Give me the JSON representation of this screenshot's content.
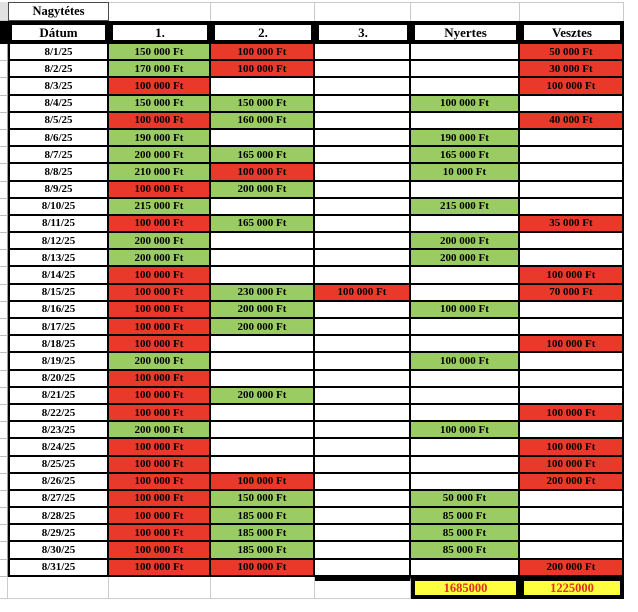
{
  "sheet": {
    "title": "Nagytétes",
    "columns": [
      "Dátum",
      "1.",
      "2.",
      "3.",
      "Nyertes",
      "Vesztes"
    ],
    "rows": [
      {
        "date": "8/1/25",
        "cells": [
          {
            "v": "150 000 Ft",
            "s": "g"
          },
          {
            "v": "100 000 Ft",
            "s": "r"
          },
          {
            "v": "",
            "s": ""
          },
          {
            "v": "",
            "s": ""
          },
          {
            "v": "50 000 Ft",
            "s": "r"
          }
        ]
      },
      {
        "date": "8/2/25",
        "cells": [
          {
            "v": "170 000 Ft",
            "s": "g"
          },
          {
            "v": "100 000 Ft",
            "s": "r"
          },
          {
            "v": "",
            "s": ""
          },
          {
            "v": "",
            "s": ""
          },
          {
            "v": "30 000 Ft",
            "s": "r"
          }
        ]
      },
      {
        "date": "8/3/25",
        "cells": [
          {
            "v": "100 000 Ft",
            "s": "r"
          },
          {
            "v": "",
            "s": ""
          },
          {
            "v": "",
            "s": ""
          },
          {
            "v": "",
            "s": ""
          },
          {
            "v": "100 000 Ft",
            "s": "r"
          }
        ]
      },
      {
        "date": "8/4/25",
        "cells": [
          {
            "v": "150 000 Ft",
            "s": "g"
          },
          {
            "v": "150 000 Ft",
            "s": "g"
          },
          {
            "v": "",
            "s": ""
          },
          {
            "v": "100 000 Ft",
            "s": "g"
          },
          {
            "v": "",
            "s": ""
          }
        ]
      },
      {
        "date": "8/5/25",
        "cells": [
          {
            "v": "100 000 Ft",
            "s": "r"
          },
          {
            "v": "160 000 Ft",
            "s": "g"
          },
          {
            "v": "",
            "s": ""
          },
          {
            "v": "",
            "s": ""
          },
          {
            "v": "40 000 Ft",
            "s": "r"
          }
        ]
      },
      {
        "date": "8/6/25",
        "cells": [
          {
            "v": "190 000 Ft",
            "s": "g"
          },
          {
            "v": "",
            "s": ""
          },
          {
            "v": "",
            "s": ""
          },
          {
            "v": "190 000 Ft",
            "s": "g"
          },
          {
            "v": "",
            "s": ""
          }
        ]
      },
      {
        "date": "8/7/25",
        "cells": [
          {
            "v": "200 000 Ft",
            "s": "g"
          },
          {
            "v": "165 000 Ft",
            "s": "g"
          },
          {
            "v": "",
            "s": ""
          },
          {
            "v": "165 000 Ft",
            "s": "g"
          },
          {
            "v": "",
            "s": ""
          }
        ]
      },
      {
        "date": "8/8/25",
        "cells": [
          {
            "v": "210 000 Ft",
            "s": "g"
          },
          {
            "v": "100 000 Ft",
            "s": "r"
          },
          {
            "v": "",
            "s": ""
          },
          {
            "v": "10 000 Ft",
            "s": "g"
          },
          {
            "v": "",
            "s": ""
          }
        ]
      },
      {
        "date": "8/9/25",
        "cells": [
          {
            "v": "100 000 Ft",
            "s": "r"
          },
          {
            "v": "200 000 Ft",
            "s": "g"
          },
          {
            "v": "",
            "s": ""
          },
          {
            "v": "",
            "s": ""
          },
          {
            "v": "",
            "s": ""
          }
        ]
      },
      {
        "date": "8/10/25",
        "cells": [
          {
            "v": "215 000 Ft",
            "s": "g"
          },
          {
            "v": "",
            "s": ""
          },
          {
            "v": "",
            "s": ""
          },
          {
            "v": "215 000 Ft",
            "s": "g"
          },
          {
            "v": "",
            "s": ""
          }
        ]
      },
      {
        "date": "8/11/25",
        "cells": [
          {
            "v": "100 000 Ft",
            "s": "r"
          },
          {
            "v": "165 000 Ft",
            "s": "g"
          },
          {
            "v": "",
            "s": ""
          },
          {
            "v": "",
            "s": ""
          },
          {
            "v": "35 000 Ft",
            "s": "r"
          }
        ]
      },
      {
        "date": "8/12/25",
        "cells": [
          {
            "v": "200 000 Ft",
            "s": "g"
          },
          {
            "v": "",
            "s": ""
          },
          {
            "v": "",
            "s": ""
          },
          {
            "v": "200 000 Ft",
            "s": "g"
          },
          {
            "v": "",
            "s": ""
          }
        ]
      },
      {
        "date": "8/13/25",
        "cells": [
          {
            "v": "200 000 Ft",
            "s": "g"
          },
          {
            "v": "",
            "s": ""
          },
          {
            "v": "",
            "s": ""
          },
          {
            "v": "200 000 Ft",
            "s": "g"
          },
          {
            "v": "",
            "s": ""
          }
        ]
      },
      {
        "date": "8/14/25",
        "cells": [
          {
            "v": "100 000 Ft",
            "s": "r"
          },
          {
            "v": "",
            "s": ""
          },
          {
            "v": "",
            "s": ""
          },
          {
            "v": "",
            "s": ""
          },
          {
            "v": "100 000 Ft",
            "s": "r"
          }
        ]
      },
      {
        "date": "8/15/25",
        "cells": [
          {
            "v": "100 000 Ft",
            "s": "r"
          },
          {
            "v": "230 000 Ft",
            "s": "g"
          },
          {
            "v": "100 000 Ft",
            "s": "r"
          },
          {
            "v": "",
            "s": ""
          },
          {
            "v": "70 000 Ft",
            "s": "r"
          }
        ]
      },
      {
        "date": "8/16/25",
        "cells": [
          {
            "v": "100 000 Ft",
            "s": "r"
          },
          {
            "v": "200 000 Ft",
            "s": "g"
          },
          {
            "v": "",
            "s": ""
          },
          {
            "v": "100 000 Ft",
            "s": "g"
          },
          {
            "v": "",
            "s": ""
          }
        ]
      },
      {
        "date": "8/17/25",
        "cells": [
          {
            "v": "100 000 Ft",
            "s": "r"
          },
          {
            "v": "200 000 Ft",
            "s": "g"
          },
          {
            "v": "",
            "s": ""
          },
          {
            "v": "",
            "s": ""
          },
          {
            "v": "",
            "s": ""
          }
        ]
      },
      {
        "date": "8/18/25",
        "cells": [
          {
            "v": "100 000 Ft",
            "s": "r"
          },
          {
            "v": "",
            "s": ""
          },
          {
            "v": "",
            "s": ""
          },
          {
            "v": "",
            "s": ""
          },
          {
            "v": "100 000 Ft",
            "s": "r"
          }
        ]
      },
      {
        "date": "8/19/25",
        "cells": [
          {
            "v": "200 000 Ft",
            "s": "g"
          },
          {
            "v": "",
            "s": ""
          },
          {
            "v": "",
            "s": ""
          },
          {
            "v": "100 000 Ft",
            "s": "g"
          },
          {
            "v": "",
            "s": ""
          }
        ]
      },
      {
        "date": "8/20/25",
        "cells": [
          {
            "v": "100 000 Ft",
            "s": "r"
          },
          {
            "v": "",
            "s": ""
          },
          {
            "v": "",
            "s": ""
          },
          {
            "v": "",
            "s": ""
          },
          {
            "v": "",
            "s": ""
          }
        ]
      },
      {
        "date": "8/21/25",
        "cells": [
          {
            "v": "100 000 Ft",
            "s": "r"
          },
          {
            "v": "200 000 Ft",
            "s": "g"
          },
          {
            "v": "",
            "s": ""
          },
          {
            "v": "",
            "s": ""
          },
          {
            "v": "",
            "s": ""
          }
        ]
      },
      {
        "date": "8/22/25",
        "cells": [
          {
            "v": "100 000 Ft",
            "s": "r"
          },
          {
            "v": "",
            "s": ""
          },
          {
            "v": "",
            "s": ""
          },
          {
            "v": "",
            "s": ""
          },
          {
            "v": "100 000 Ft",
            "s": "r"
          }
        ]
      },
      {
        "date": "8/23/25",
        "cells": [
          {
            "v": "200 000 Ft",
            "s": "g"
          },
          {
            "v": "",
            "s": ""
          },
          {
            "v": "",
            "s": ""
          },
          {
            "v": "100 000 Ft",
            "s": "g"
          },
          {
            "v": "",
            "s": ""
          }
        ]
      },
      {
        "date": "8/24/25",
        "cells": [
          {
            "v": "100 000 Ft",
            "s": "r"
          },
          {
            "v": "",
            "s": ""
          },
          {
            "v": "",
            "s": ""
          },
          {
            "v": "",
            "s": ""
          },
          {
            "v": "100 000 Ft",
            "s": "r"
          }
        ]
      },
      {
        "date": "8/25/25",
        "cells": [
          {
            "v": "100 000 Ft",
            "s": "r"
          },
          {
            "v": "",
            "s": ""
          },
          {
            "v": "",
            "s": ""
          },
          {
            "v": "",
            "s": ""
          },
          {
            "v": "100 000 Ft",
            "s": "r"
          }
        ]
      },
      {
        "date": "8/26/25",
        "cells": [
          {
            "v": "100 000 Ft",
            "s": "r"
          },
          {
            "v": "100 000 Ft",
            "s": "r"
          },
          {
            "v": "",
            "s": ""
          },
          {
            "v": "",
            "s": ""
          },
          {
            "v": "200 000 Ft",
            "s": "r"
          }
        ]
      },
      {
        "date": "8/27/25",
        "cells": [
          {
            "v": "100 000 Ft",
            "s": "r"
          },
          {
            "v": "150 000 Ft",
            "s": "g"
          },
          {
            "v": "",
            "s": ""
          },
          {
            "v": "50 000 Ft",
            "s": "g"
          },
          {
            "v": "",
            "s": ""
          }
        ]
      },
      {
        "date": "8/28/25",
        "cells": [
          {
            "v": "100 000 Ft",
            "s": "r"
          },
          {
            "v": "185 000 Ft",
            "s": "g"
          },
          {
            "v": "",
            "s": ""
          },
          {
            "v": "85 000 Ft",
            "s": "g"
          },
          {
            "v": "",
            "s": ""
          }
        ]
      },
      {
        "date": "8/29/25",
        "cells": [
          {
            "v": "100 000 Ft",
            "s": "r"
          },
          {
            "v": "185 000 Ft",
            "s": "g"
          },
          {
            "v": "",
            "s": ""
          },
          {
            "v": "85 000 Ft",
            "s": "g"
          },
          {
            "v": "",
            "s": ""
          }
        ]
      },
      {
        "date": "8/30/25",
        "cells": [
          {
            "v": "100 000 Ft",
            "s": "r"
          },
          {
            "v": "185 000 Ft",
            "s": "g"
          },
          {
            "v": "",
            "s": ""
          },
          {
            "v": "85 000 Ft",
            "s": "g"
          },
          {
            "v": "",
            "s": ""
          }
        ]
      },
      {
        "date": "8/31/25",
        "cells": [
          {
            "v": "100 000 Ft",
            "s": "r"
          },
          {
            "v": "100 000 Ft",
            "s": "r"
          },
          {
            "v": "",
            "s": ""
          },
          {
            "v": "",
            "s": ""
          },
          {
            "v": "200 000 Ft",
            "s": "r"
          }
        ]
      }
    ],
    "totals": {
      "nyertes": "1685000",
      "vesztes": "1225000"
    },
    "colors": {
      "green": "#9BCB63",
      "red": "#E8392B",
      "yellow": "#FFFF3F",
      "totals_text": "#E0301E"
    }
  }
}
